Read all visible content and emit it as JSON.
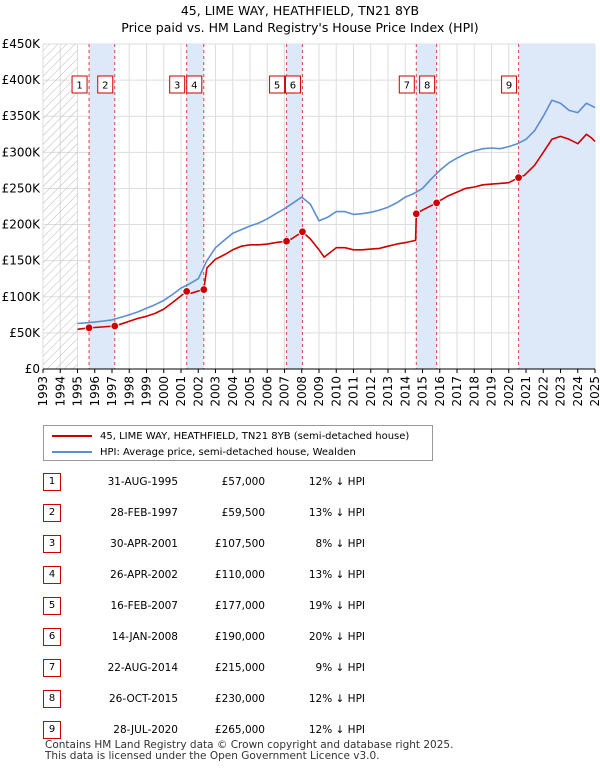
{
  "title": {
    "line1": "45, LIME WAY, HEATHFIELD, TN21 8YB",
    "line2": "Price paid vs. HM Land Registry's House Price Index (HPI)"
  },
  "chart_data": {
    "type": "line",
    "title": "45, LIME WAY, HEATHFIELD, TN21 8YB — Price paid vs. HM Land Registry's House Price Index (HPI)",
    "xlabel": "",
    "ylabel": "",
    "xlim": [
      1993,
      2025
    ],
    "ylim": [
      0,
      450000
    ],
    "x_ticks": [
      1993,
      1994,
      1995,
      1996,
      1997,
      1998,
      1999,
      2000,
      2001,
      2002,
      2003,
      2004,
      2005,
      2006,
      2007,
      2008,
      2009,
      2010,
      2011,
      2012,
      2013,
      2014,
      2015,
      2016,
      2017,
      2018,
      2019,
      2020,
      2021,
      2022,
      2023,
      2024,
      2025
    ],
    "y_ticks": [
      {
        "value": 0,
        "label": "£0"
      },
      {
        "value": 50000,
        "label": "£50K"
      },
      {
        "value": 100000,
        "label": "£100K"
      },
      {
        "value": 150000,
        "label": "£150K"
      },
      {
        "value": 200000,
        "label": "£200K"
      },
      {
        "value": 250000,
        "label": "£250K"
      },
      {
        "value": 300000,
        "label": "£300K"
      },
      {
        "value": 350000,
        "label": "£350K"
      },
      {
        "value": 400000,
        "label": "£400K"
      },
      {
        "value": 450000,
        "label": "£450K"
      }
    ],
    "hatched_until": 1995.0,
    "grid": true,
    "series": [
      {
        "name": "45, LIME WAY, HEATHFIELD, TN21 8YB (semi-detached house)",
        "color": "#cc0000",
        "x": [
          1995.0,
          1995.67,
          1996.0,
          1997.16,
          1997.5,
          1998.0,
          1998.5,
          1999.0,
          1999.5,
          2000.0,
          2000.5,
          2001.33,
          2001.6,
          2002.0,
          2002.32,
          2002.5,
          2003.0,
          2003.5,
          2004.0,
          2004.5,
          2005.0,
          2005.5,
          2006.0,
          2006.5,
          2007.12,
          2007.4,
          2008.04,
          2008.5,
          2009.0,
          2009.3,
          2010.0,
          2010.5,
          2011.0,
          2011.5,
          2012.0,
          2012.5,
          2013.0,
          2013.5,
          2014.0,
          2014.6,
          2014.64,
          2015.0,
          2015.82,
          2016.0,
          2016.5,
          2017.0,
          2017.5,
          2018.0,
          2018.5,
          2019.0,
          2019.5,
          2020.0,
          2020.57,
          2020.9,
          2021.5,
          2022.0,
          2022.5,
          2023.0,
          2023.5,
          2024.0,
          2024.5,
          2024.8,
          2025.0
        ],
        "values": [
          55000,
          57000,
          57500,
          59500,
          62000,
          66000,
          70000,
          73000,
          77000,
          83000,
          92000,
          107500,
          105000,
          108000,
          110000,
          140000,
          152000,
          158000,
          165000,
          170000,
          172000,
          172000,
          173000,
          175000,
          177000,
          180000,
          190000,
          180000,
          165000,
          155000,
          168000,
          168000,
          165000,
          165000,
          166000,
          167000,
          170000,
          173000,
          175000,
          178000,
          215000,
          220000,
          230000,
          233000,
          240000,
          245000,
          250000,
          252000,
          255000,
          256000,
          257000,
          258000,
          265000,
          268000,
          282000,
          300000,
          318000,
          322000,
          318000,
          312000,
          325000,
          320000,
          315000
        ]
      },
      {
        "name": "HPI: Average price, semi-detached house, Wealden",
        "color": "#5b8fd0",
        "x": [
          1995.0,
          1995.5,
          1996.0,
          1996.5,
          1997.0,
          1997.5,
          1998.0,
          1998.5,
          1999.0,
          1999.5,
          2000.0,
          2000.5,
          2001.0,
          2001.5,
          2002.0,
          2002.5,
          2003.0,
          2003.5,
          2004.0,
          2004.5,
          2005.0,
          2005.5,
          2006.0,
          2006.5,
          2007.0,
          2007.5,
          2008.0,
          2008.5,
          2009.0,
          2009.5,
          2010.0,
          2010.5,
          2011.0,
          2011.5,
          2012.0,
          2012.5,
          2013.0,
          2013.5,
          2014.0,
          2014.5,
          2015.0,
          2015.5,
          2016.0,
          2016.5,
          2017.0,
          2017.5,
          2018.0,
          2018.5,
          2019.0,
          2019.5,
          2020.0,
          2020.5,
          2021.0,
          2021.5,
          2022.0,
          2022.5,
          2023.0,
          2023.5,
          2024.0,
          2024.5,
          2025.0
        ],
        "values": [
          63000,
          64000,
          65000,
          66500,
          68000,
          71500,
          75000,
          79000,
          84000,
          89000,
          95000,
          103000,
          112000,
          118000,
          125000,
          150000,
          168000,
          178000,
          188000,
          193000,
          198000,
          202000,
          208000,
          215000,
          222000,
          230000,
          238000,
          228000,
          205000,
          210000,
          218000,
          218000,
          214000,
          215000,
          217000,
          220000,
          224000,
          230000,
          238000,
          243000,
          250000,
          263000,
          275000,
          285000,
          292000,
          298000,
          302000,
          305000,
          306000,
          305000,
          308000,
          312000,
          318000,
          330000,
          350000,
          372000,
          368000,
          358000,
          355000,
          368000,
          362000
        ]
      }
    ],
    "sale_markers": [
      {
        "num": "1",
        "x": 1995.67,
        "price": 57000
      },
      {
        "num": "2",
        "x": 1997.16,
        "price": 59500
      },
      {
        "num": "3",
        "x": 2001.33,
        "price": 107500
      },
      {
        "num": "4",
        "x": 2002.32,
        "price": 110000
      },
      {
        "num": "5",
        "x": 2007.12,
        "price": 177000
      },
      {
        "num": "6",
        "x": 2008.04,
        "price": 190000
      },
      {
        "num": "7",
        "x": 2014.64,
        "price": 215000
      },
      {
        "num": "8",
        "x": 2015.82,
        "price": 230000
      },
      {
        "num": "9",
        "x": 2020.57,
        "price": 265000
      }
    ],
    "shaded_periods": [
      [
        1995.67,
        1997.16
      ],
      [
        2001.33,
        2002.32
      ],
      [
        2007.12,
        2008.04
      ],
      [
        2014.64,
        2015.82
      ],
      [
        2020.57,
        2025.0
      ]
    ],
    "colors": {
      "shade": "#dde8f8",
      "marker_line": "#dd4444",
      "hatch": "#bbbbbb",
      "grid": "#dddddd"
    }
  },
  "legend": {
    "red_label": "45, LIME WAY, HEATHFIELD, TN21 8YB (semi-detached house)",
    "blue_label": "HPI: Average price, semi-detached house, Wealden"
  },
  "sales": [
    {
      "num": "1",
      "date": "31-AUG-1995",
      "price": "£57,000",
      "hpi": "12% ↓ HPI"
    },
    {
      "num": "2",
      "date": "28-FEB-1997",
      "price": "£59,500",
      "hpi": "13% ↓ HPI"
    },
    {
      "num": "3",
      "date": "30-APR-2001",
      "price": "£107,500",
      "hpi": "8% ↓ HPI"
    },
    {
      "num": "4",
      "date": "26-APR-2002",
      "price": "£110,000",
      "hpi": "13% ↓ HPI"
    },
    {
      "num": "5",
      "date": "16-FEB-2007",
      "price": "£177,000",
      "hpi": "19% ↓ HPI"
    },
    {
      "num": "6",
      "date": "14-JAN-2008",
      "price": "£190,000",
      "hpi": "20% ↓ HPI"
    },
    {
      "num": "7",
      "date": "22-AUG-2014",
      "price": "£215,000",
      "hpi": "9% ↓ HPI"
    },
    {
      "num": "8",
      "date": "26-OCT-2015",
      "price": "£230,000",
      "hpi": "12% ↓ HPI"
    },
    {
      "num": "9",
      "date": "28-JUL-2020",
      "price": "£265,000",
      "hpi": "12% ↓ HPI"
    }
  ],
  "footer": {
    "line1": "Contains HM Land Registry data © Crown copyright and database right 2025.",
    "line2": "This data is licensed under the Open Government Licence v3.0."
  }
}
